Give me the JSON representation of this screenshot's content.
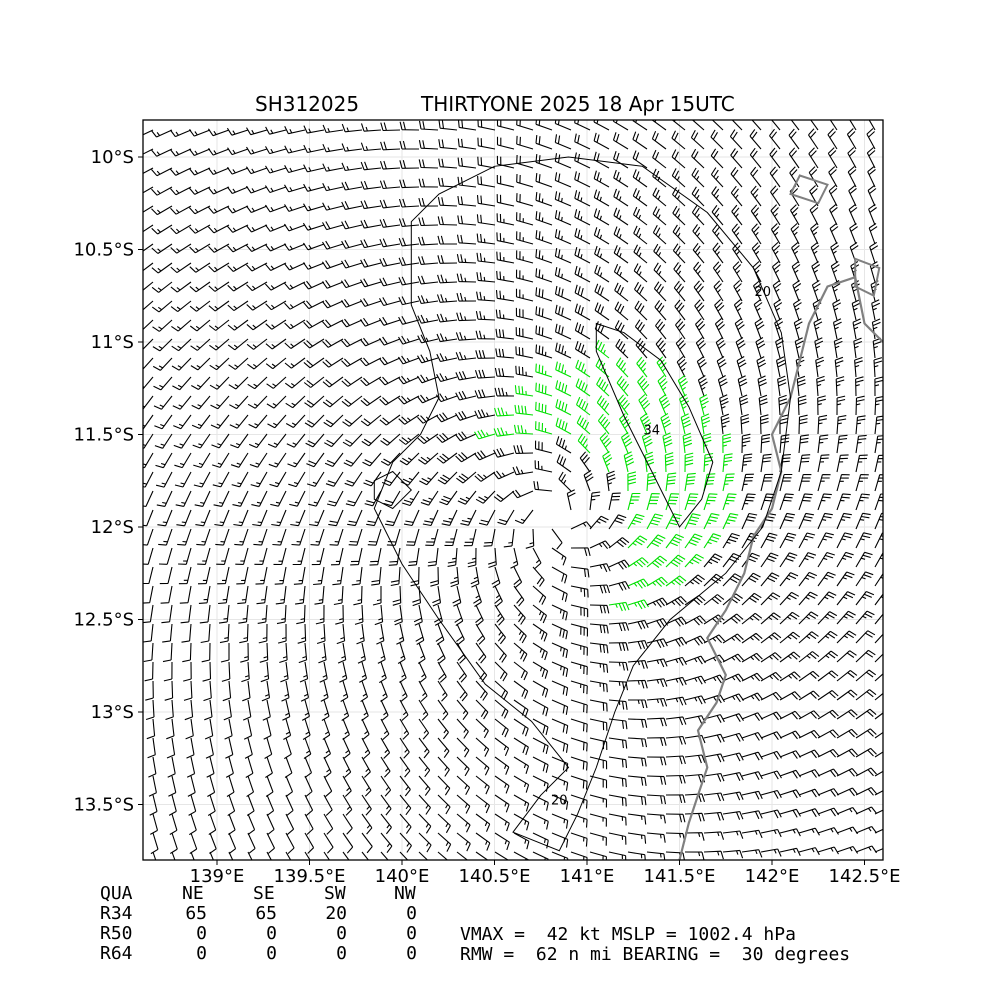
{
  "header": {
    "storm_id": "SH312025",
    "storm_title": "THIRTYONE 2025 18 Apr 15UTC"
  },
  "chart_data": {
    "type": "wind-barb-map",
    "title_left": "SH312025",
    "title_right": "THIRTYONE 2025 18 Apr 15UTC",
    "xlim": [
      138.6,
      142.6
    ],
    "ylim": [
      -13.8,
      -9.8
    ],
    "x_ticks": [
      {
        "value": 139.0,
        "label": "139°E"
      },
      {
        "value": 139.5,
        "label": "139.5°E"
      },
      {
        "value": 140.0,
        "label": "140°E"
      },
      {
        "value": 140.5,
        "label": "140.5°E"
      },
      {
        "value": 141.0,
        "label": "141°E"
      },
      {
        "value": 141.5,
        "label": "141.5°E"
      },
      {
        "value": 142.0,
        "label": "142°E"
      },
      {
        "value": 142.5,
        "label": "142.5°E"
      }
    ],
    "y_ticks": [
      {
        "value": -10.0,
        "label": "10°S"
      },
      {
        "value": -10.5,
        "label": "10.5°S"
      },
      {
        "value": -11.0,
        "label": "11°S"
      },
      {
        "value": -11.5,
        "label": "11.5°S"
      },
      {
        "value": -12.0,
        "label": "12°S"
      },
      {
        "value": -12.5,
        "label": "12.5°S"
      },
      {
        "value": -13.0,
        "label": "13°S"
      },
      {
        "value": -13.5,
        "label": "13.5°S"
      }
    ],
    "grid": true,
    "center": {
      "lon": 140.85,
      "lat": -11.95
    },
    "vmax_kt": 42,
    "rmw_nmi": 62,
    "bearing_deg": 30,
    "contours": [
      {
        "level": 20,
        "label": "20",
        "label_positions": [
          {
            "lon": 141.95,
            "lat": -10.75
          },
          {
            "lon": 140.85,
            "lat": -13.5
          }
        ]
      },
      {
        "level": 34,
        "label": "34",
        "label_positions": [
          {
            "lon": 141.35,
            "lat": -11.5
          }
        ]
      }
    ],
    "barb_colors": {
      "below_34": "#000000",
      "34_to_50": "#00e000",
      "50_plus": "#f0b400"
    },
    "coast_color": "#808080"
  },
  "table": {
    "header": [
      "QUA",
      "NE",
      "SE",
      "SW",
      "NW"
    ],
    "rows": [
      {
        "label": "R34",
        "values": [
          "65",
          "65",
          "20",
          "0"
        ]
      },
      {
        "label": "R50",
        "values": [
          "0",
          "0",
          "0",
          "0"
        ]
      },
      {
        "label": "R64",
        "values": [
          "0",
          "0",
          "0",
          "0"
        ]
      }
    ]
  },
  "info": {
    "line1": "VMAX =  42 kt MSLP = 1002.4 hPa",
    "line2": "RMW =  62 n mi BEARING =  30 degrees"
  }
}
